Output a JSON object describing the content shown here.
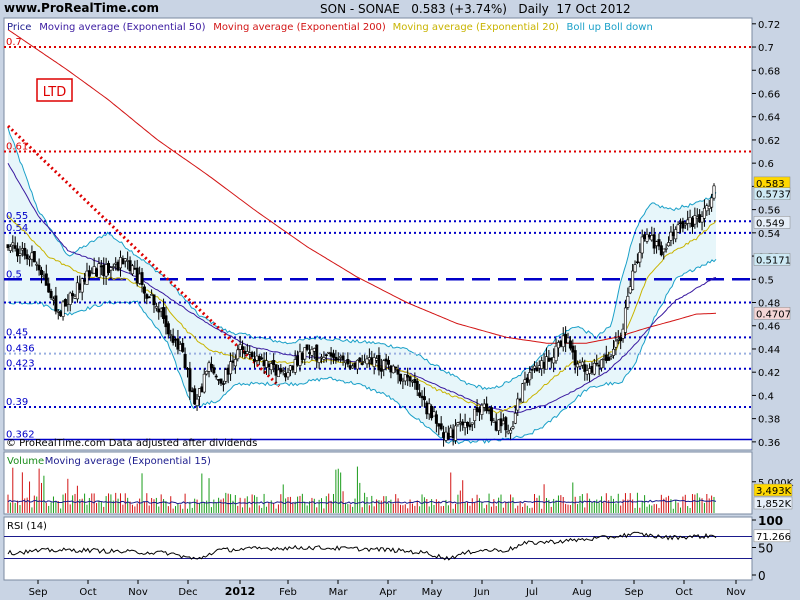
{
  "header": {
    "site": "www.ProRealTime.com",
    "title": "SON - SONAE   0.583 (+3.74%)   Daily  17 Oct 2012"
  },
  "price_legend": [
    {
      "text": "Price",
      "color": "#1a1a8c"
    },
    {
      "text": "Moving average (Exponential 50)",
      "color": "#3a1aa0"
    },
    {
      "text": "Moving average (Exponential 200)",
      "color": "#d21414"
    },
    {
      "text": "Moving average (Exponential 20)",
      "color": "#c8b400"
    },
    {
      "text": "Boll up Boll down",
      "color": "#1aa0c8"
    }
  ],
  "ltd_label": "LTD",
  "copyright": "© ProRealTime.com  Data adjusted after dividends",
  "volume_legend": [
    {
      "text": "Volume",
      "color": "#1a8c1a"
    },
    {
      "text": "Moving average (Exponential 15)",
      "color": "#1a1a8c"
    }
  ],
  "rsi_legend": "RSI (14)",
  "colors": {
    "price": "#1a1a8c",
    "ema50": "#3a1aa0",
    "ema200": "#d21414",
    "ema20": "#c8b400",
    "boll": "#1aa0c8",
    "level": "#0000c8",
    "red_level": "#dd0000",
    "last_price_bg": "#ffd800",
    "volume_up": "#1a9c1a",
    "volume_down": "#d21414"
  },
  "chart_data": [
    {
      "type": "line",
      "title": "SON - SONAE Daily",
      "x": [
        "Sep",
        "Oct",
        "Nov",
        "Dec",
        "2012",
        "Feb",
        "Mar",
        "Apr",
        "May",
        "Jun",
        "Jul",
        "Aug",
        "Sep",
        "Oct",
        "Nov"
      ],
      "ylim": [
        0.353,
        0.725
      ],
      "y_ticks": [
        0.36,
        0.38,
        0.4,
        0.42,
        0.44,
        0.46,
        0.48,
        0.5,
        0.52,
        0.54,
        0.56,
        0.58,
        0.6,
        0.62,
        0.64,
        0.66,
        0.68,
        0.7,
        0.72
      ],
      "y_tick_labels": [
        "0.36",
        "0.38",
        "0.4",
        "0.42",
        "0.44",
        "0.46",
        "0.48",
        "0.5",
        "0.52",
        "0.54",
        "0.56",
        "0.58",
        "0.6",
        "0.62",
        "0.64",
        "0.66",
        "0.68",
        "0.7",
        "0.72"
      ],
      "price_keypoints": [
        [
          0,
          0.53
        ],
        [
          30,
          0.515
        ],
        [
          50,
          0.47
        ],
        [
          80,
          0.505
        ],
        [
          120,
          0.515
        ],
        [
          150,
          0.475
        ],
        [
          175,
          0.435
        ],
        [
          188,
          0.39
        ],
        [
          200,
          0.425
        ],
        [
          215,
          0.41
        ],
        [
          230,
          0.44
        ],
        [
          260,
          0.425
        ],
        [
          280,
          0.42
        ],
        [
          300,
          0.438
        ],
        [
          320,
          0.432
        ],
        [
          340,
          0.428
        ],
        [
          360,
          0.43
        ],
        [
          380,
          0.425
        ],
        [
          400,
          0.415
        ],
        [
          420,
          0.39
        ],
        [
          440,
          0.365
        ],
        [
          460,
          0.375
        ],
        [
          475,
          0.39
        ],
        [
          490,
          0.375
        ],
        [
          505,
          0.375
        ],
        [
          520,
          0.415
        ],
        [
          540,
          0.43
        ],
        [
          560,
          0.45
        ],
        [
          570,
          0.425
        ],
        [
          585,
          0.42
        ],
        [
          600,
          0.43
        ],
        [
          615,
          0.45
        ],
        [
          625,
          0.5
        ],
        [
          640,
          0.545
        ],
        [
          655,
          0.52
        ],
        [
          670,
          0.545
        ],
        [
          690,
          0.55
        ],
        [
          700,
          0.56
        ],
        [
          710,
          0.583
        ]
      ],
      "ema20_keypoints": [
        [
          0,
          0.555
        ],
        [
          40,
          0.52
        ],
        [
          80,
          0.502
        ],
        [
          120,
          0.5
        ],
        [
          150,
          0.485
        ],
        [
          180,
          0.455
        ],
        [
          200,
          0.44
        ],
        [
          220,
          0.435
        ],
        [
          250,
          0.43
        ],
        [
          280,
          0.428
        ],
        [
          320,
          0.43
        ],
        [
          360,
          0.428
        ],
        [
          400,
          0.42
        ],
        [
          430,
          0.405
        ],
        [
          460,
          0.395
        ],
        [
          490,
          0.385
        ],
        [
          520,
          0.395
        ],
        [
          540,
          0.41
        ],
        [
          565,
          0.428
        ],
        [
          590,
          0.43
        ],
        [
          610,
          0.44
        ],
        [
          625,
          0.465
        ],
        [
          640,
          0.5
        ],
        [
          660,
          0.52
        ],
        [
          690,
          0.535
        ],
        [
          710,
          0.55
        ]
      ],
      "ema50_keypoints": [
        [
          0,
          0.6
        ],
        [
          30,
          0.555
        ],
        [
          60,
          0.525
        ],
        [
          100,
          0.512
        ],
        [
          130,
          0.502
        ],
        [
          160,
          0.485
        ],
        [
          200,
          0.462
        ],
        [
          240,
          0.443
        ],
        [
          280,
          0.435
        ],
        [
          320,
          0.432
        ],
        [
          360,
          0.428
        ],
        [
          400,
          0.42
        ],
        [
          440,
          0.405
        ],
        [
          480,
          0.39
        ],
        [
          510,
          0.385
        ],
        [
          540,
          0.392
        ],
        [
          570,
          0.405
        ],
        [
          600,
          0.42
        ],
        [
          625,
          0.44
        ],
        [
          650,
          0.465
        ],
        [
          670,
          0.482
        ],
        [
          690,
          0.492
        ],
        [
          710,
          0.502
        ]
      ],
      "ema200_keypoints": [
        [
          0,
          0.715
        ],
        [
          60,
          0.68
        ],
        [
          100,
          0.655
        ],
        [
          150,
          0.62
        ],
        [
          200,
          0.59
        ],
        [
          250,
          0.558
        ],
        [
          300,
          0.528
        ],
        [
          350,
          0.502
        ],
        [
          400,
          0.48
        ],
        [
          450,
          0.462
        ],
        [
          500,
          0.45
        ],
        [
          540,
          0.445
        ],
        [
          580,
          0.445
        ],
        [
          610,
          0.45
        ],
        [
          640,
          0.458
        ],
        [
          670,
          0.465
        ],
        [
          690,
          0.47
        ],
        [
          710,
          0.4707
        ]
      ],
      "boll_up_keypoints": [
        [
          0,
          0.63
        ],
        [
          30,
          0.56
        ],
        [
          60,
          0.52
        ],
        [
          100,
          0.54
        ],
        [
          130,
          0.52
        ],
        [
          160,
          0.5
        ],
        [
          190,
          0.47
        ],
        [
          220,
          0.455
        ],
        [
          250,
          0.45
        ],
        [
          280,
          0.445
        ],
        [
          310,
          0.45
        ],
        [
          340,
          0.447
        ],
        [
          370,
          0.445
        ],
        [
          400,
          0.44
        ],
        [
          430,
          0.425
        ],
        [
          460,
          0.41
        ],
        [
          485,
          0.405
        ],
        [
          510,
          0.415
        ],
        [
          530,
          0.43
        ],
        [
          550,
          0.45
        ],
        [
          570,
          0.46
        ],
        [
          590,
          0.45
        ],
        [
          605,
          0.46
        ],
        [
          615,
          0.5
        ],
        [
          630,
          0.545
        ],
        [
          645,
          0.565
        ],
        [
          665,
          0.56
        ],
        [
          690,
          0.565
        ],
        [
          710,
          0.5737
        ]
      ],
      "boll_down_keypoints": [
        [
          0,
          0.48
        ],
        [
          30,
          0.48
        ],
        [
          60,
          0.47
        ],
        [
          100,
          0.48
        ],
        [
          130,
          0.48
        ],
        [
          160,
          0.445
        ],
        [
          185,
          0.39
        ],
        [
          210,
          0.395
        ],
        [
          230,
          0.41
        ],
        [
          260,
          0.41
        ],
        [
          290,
          0.41
        ],
        [
          320,
          0.415
        ],
        [
          350,
          0.41
        ],
        [
          380,
          0.4
        ],
        [
          410,
          0.38
        ],
        [
          440,
          0.36
        ],
        [
          470,
          0.36
        ],
        [
          500,
          0.362
        ],
        [
          520,
          0.365
        ],
        [
          540,
          0.375
        ],
        [
          560,
          0.39
        ],
        [
          580,
          0.405
        ],
        [
          600,
          0.41
        ],
        [
          615,
          0.41
        ],
        [
          630,
          0.43
        ],
        [
          650,
          0.47
        ],
        [
          670,
          0.5
        ],
        [
          690,
          0.51
        ],
        [
          710,
          0.5171
        ]
      ],
      "ltd_trendline": [
        [
          0,
          0.632
        ],
        [
          272,
          0.408
        ]
      ],
      "red_levels": [
        {
          "value": 0.7,
          "label": "0.7"
        },
        {
          "value": 0.61,
          "label": "0.61"
        }
      ],
      "blue_levels": [
        {
          "value": 0.55,
          "label": "0.55",
          "style": "dotted"
        },
        {
          "value": 0.54,
          "label": "0.54",
          "style": "dotted"
        },
        {
          "value": 0.5,
          "label": "0.5",
          "style": "dashed"
        },
        {
          "value": 0.48,
          "label": "",
          "style": "dotted"
        },
        {
          "value": 0.45,
          "label": "0.45",
          "style": "dotted"
        },
        {
          "value": 0.436,
          "label": "0.436",
          "style": "light"
        },
        {
          "value": 0.423,
          "label": "0.423",
          "style": "dotted"
        },
        {
          "value": 0.39,
          "label": "0.39",
          "style": "dotted"
        },
        {
          "value": 0.362,
          "label": "0.362",
          "style": "solid"
        }
      ],
      "right_labels": [
        {
          "value": 0.583,
          "text": "0.583",
          "bg": "#ffd800"
        },
        {
          "value": 0.5737,
          "text": "0.5737",
          "bg": "#cde9f4"
        },
        {
          "value": 0.549,
          "text": "0.549",
          "bg": "#e6eef8"
        },
        {
          "value": 0.5171,
          "text": "0.5171",
          "bg": "#cde9f4"
        },
        {
          "value": 0.4707,
          "text": "0.4707",
          "bg": "#f4d6d6"
        }
      ]
    },
    {
      "type": "bar",
      "title": "Volume",
      "ylim": [
        0,
        9000000
      ],
      "y_tick_labels": [
        "5,000K"
      ],
      "last_value_labels": [
        "3,493K",
        "1,852K"
      ]
    },
    {
      "type": "line",
      "title": "RSI (14)",
      "ylim": [
        0,
        100
      ],
      "y_tick_labels": [
        "100",
        "50",
        "0"
      ],
      "reference_levels": [
        70,
        30
      ],
      "last_value": 71.266,
      "last_value_label": "71.266",
      "rsi_keypoints": [
        [
          0,
          40
        ],
        [
          40,
          45
        ],
        [
          80,
          45
        ],
        [
          120,
          42
        ],
        [
          160,
          40
        ],
        [
          190,
          28
        ],
        [
          210,
          45
        ],
        [
          250,
          48
        ],
        [
          300,
          50
        ],
        [
          340,
          48
        ],
        [
          380,
          46
        ],
        [
          420,
          40
        ],
        [
          440,
          30
        ],
        [
          470,
          45
        ],
        [
          500,
          45
        ],
        [
          520,
          58
        ],
        [
          560,
          62
        ],
        [
          600,
          68
        ],
        [
          630,
          75
        ],
        [
          660,
          68
        ],
        [
          690,
          70
        ],
        [
          710,
          71.266
        ]
      ]
    }
  ]
}
